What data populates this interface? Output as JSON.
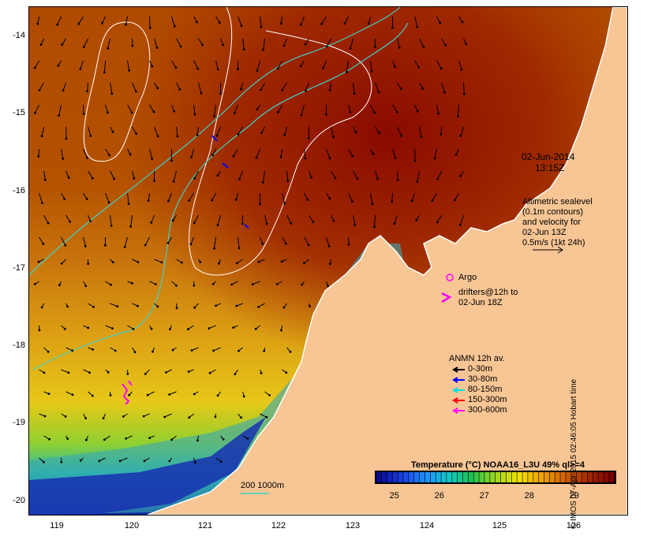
{
  "map": {
    "lat_ticks": [
      "-14",
      "-15",
      "-16",
      "-17",
      "-18",
      "-19",
      "-20"
    ],
    "lon_ticks": [
      "119",
      "120",
      "121",
      "122",
      "123",
      "124",
      "125",
      "126"
    ],
    "lat_range": [
      -20.1,
      -13.6
    ],
    "lon_range": [
      118.6,
      126.7
    ],
    "land_color": "#f8c594",
    "coast_color": "#ffffff"
  },
  "annotations": {
    "date": "02-Jun-2014",
    "time": "13:15Z",
    "altimetry_lines": [
      "Altimetric sealevel",
      "(0.1m contours)",
      "and velocity for",
      "02-Jun 13Z",
      "0.5m/s (1kt 24h)"
    ],
    "argo_label": "Argo",
    "drifter_lines": [
      "drifters@12h to",
      "02-Jun 18Z"
    ],
    "drifter_color": "#ff00ff",
    "depth_scale_label": "200  1000m"
  },
  "anmn_legend": {
    "title": "ANMN 12h av.",
    "items": [
      {
        "label": "0-30m",
        "color": "#000000"
      },
      {
        "label": "30-80m",
        "color": "#0000ff"
      },
      {
        "label": "80-150m",
        "color": "#00e0e0"
      },
      {
        "label": "150-300m",
        "color": "#ff0000"
      },
      {
        "label": "300-600m",
        "color": "#ff00ff"
      }
    ]
  },
  "colorbar": {
    "title": "Temperature (°C) NOAA16_L3U 49% ql>=4",
    "ticks": [
      "25",
      "26",
      "27",
      "28",
      "29"
    ],
    "min": 24.6,
    "max": 29.9,
    "stops": [
      "#0a0a90",
      "#1a3fe0",
      "#1e90ff",
      "#10c8c8",
      "#20c050",
      "#9fd820",
      "#f4e400",
      "#f0a000",
      "#d06000",
      "#a02800",
      "#7a0000"
    ]
  },
  "credit": "© IMOS 07-Apr-2015 02:46:05 Hobart time"
}
